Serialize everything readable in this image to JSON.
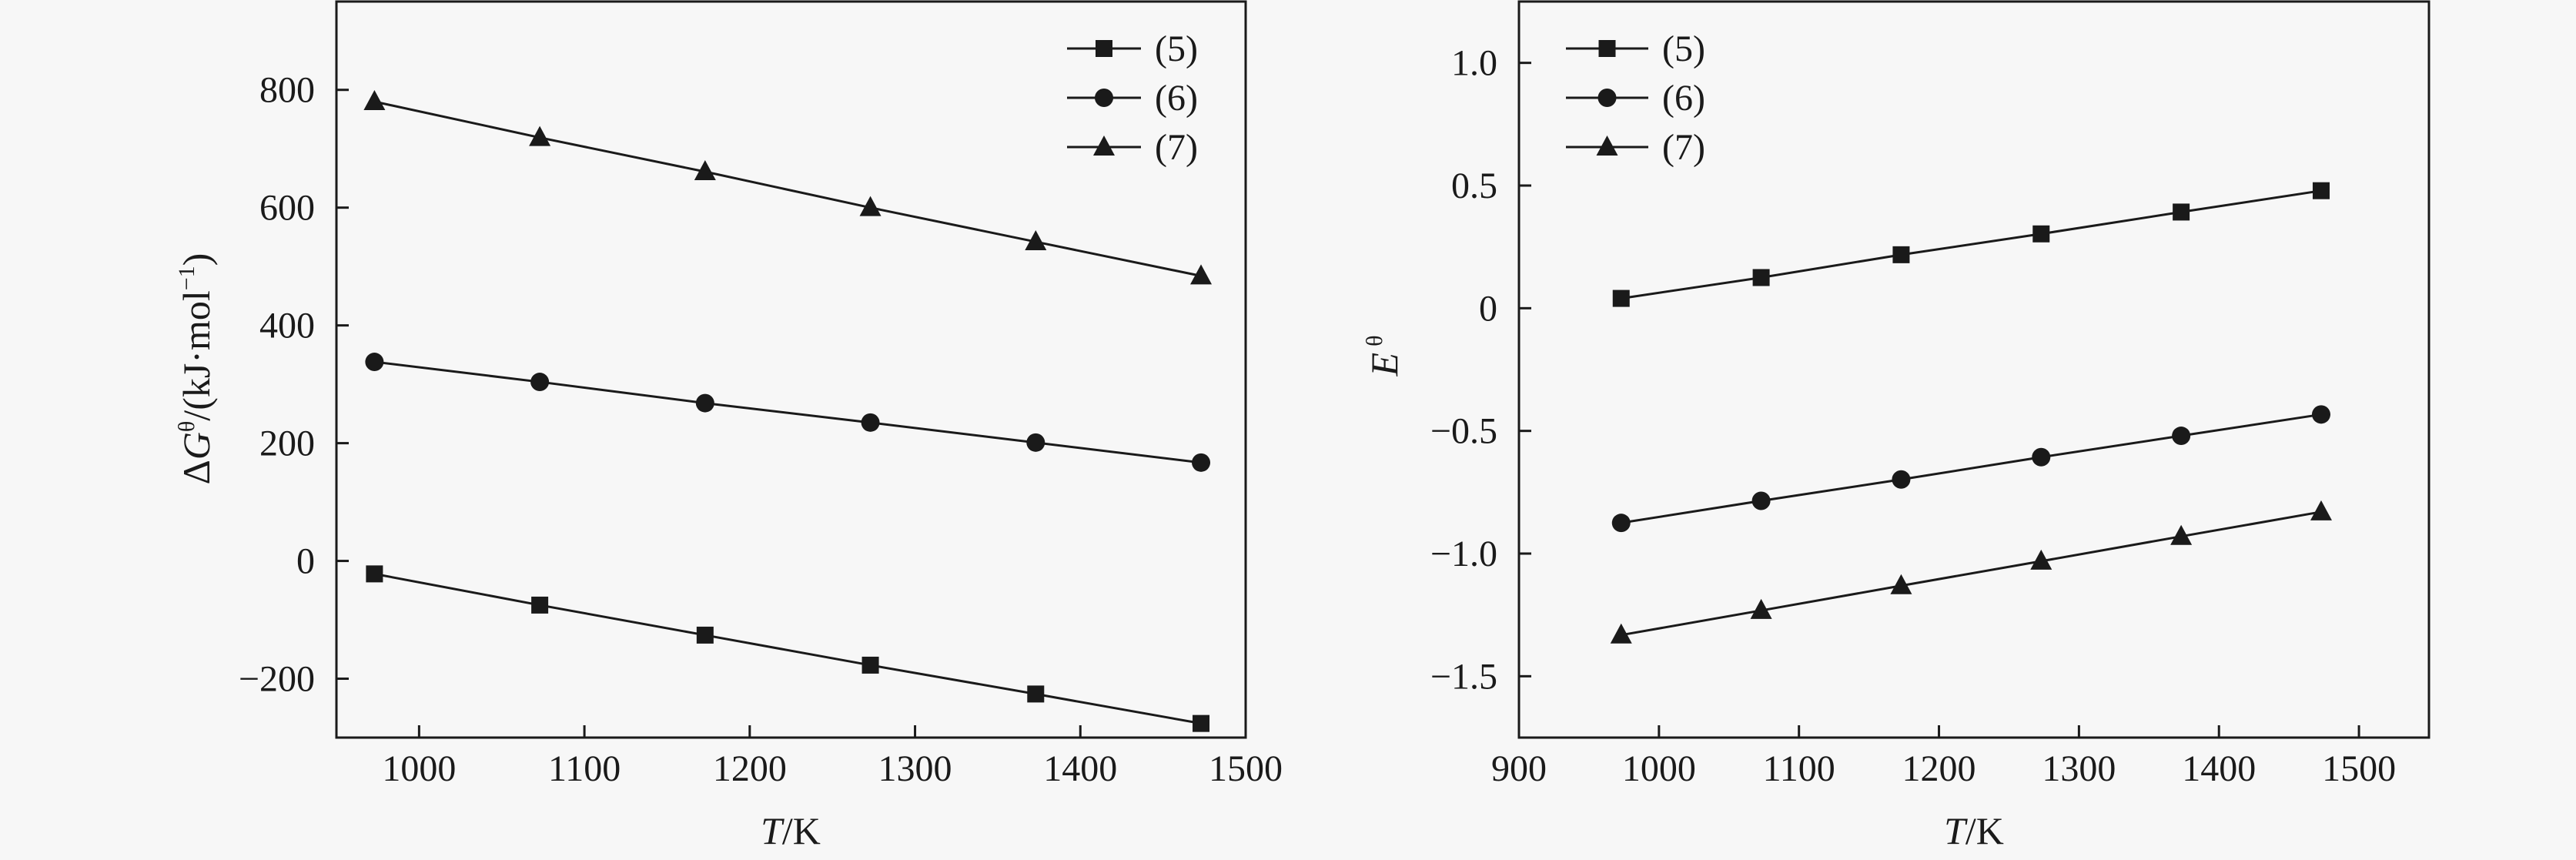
{
  "chart_data": [
    {
      "type": "line",
      "title": "",
      "xlabel": "T/K",
      "xlabel_italic": "T",
      "xlabel_unit": "/K",
      "ylabel": "ΔGθ/(kJ·mol−1)",
      "ylabel_parts": {
        "delta": "Δ",
        "var": "G",
        "sup": "θ",
        "unit": "/(kJ·mol",
        "unit_sup": "−1",
        "close": ")"
      },
      "xlim": [
        950,
        1500
      ],
      "ylim": [
        -300,
        950
      ],
      "xticks": [
        1000,
        1100,
        1200,
        1300,
        1400,
        1500
      ],
      "xtick_labels": [
        "1000",
        "1100",
        "1200",
        "1300",
        "1400",
        "1500"
      ],
      "yticks": [
        -200,
        0,
        200,
        400,
        600,
        800
      ],
      "ytick_labels": [
        "−200",
        "0",
        "200",
        "400",
        "600",
        "800"
      ],
      "legend_position": "top-right",
      "x": [
        973,
        1073,
        1173,
        1273,
        1373,
        1473
      ],
      "series": [
        {
          "name": "(5)",
          "marker": "square",
          "values": [
            -22,
            -75,
            -126,
            -177,
            -226,
            -276
          ]
        },
        {
          "name": "(6)",
          "marker": "circle",
          "values": [
            338,
            304,
            268,
            235,
            201,
            167
          ]
        },
        {
          "name": "(7)",
          "marker": "triangle",
          "values": [
            780,
            719,
            661,
            600,
            542,
            484
          ]
        }
      ]
    },
    {
      "type": "line",
      "title": "",
      "xlabel": "T/K",
      "xlabel_italic": "T",
      "xlabel_unit": "/K",
      "ylabel": "Eθ",
      "ylabel_parts": {
        "var": "E",
        "sup": "θ"
      },
      "xlim": [
        900,
        1550
      ],
      "ylim": [
        -1.75,
        1.25
      ],
      "xticks": [
        900,
        1000,
        1100,
        1200,
        1300,
        1400,
        1500
      ],
      "xtick_labels": [
        "900",
        "1000",
        "1100",
        "1200",
        "1300",
        "1400",
        "1500"
      ],
      "yticks": [
        -1.5,
        -1.0,
        -0.5,
        0,
        0.5,
        1.0
      ],
      "ytick_labels": [
        "−1.5",
        "−1.0",
        "−0.5",
        "0",
        "0.5",
        "1.0"
      ],
      "legend_position": "top-left",
      "x": [
        973,
        1073,
        1173,
        1273,
        1373,
        1473
      ],
      "series": [
        {
          "name": "(5)",
          "marker": "square",
          "values": [
            0.04,
            0.125,
            0.218,
            0.303,
            0.392,
            0.479
          ]
        },
        {
          "name": "(6)",
          "marker": "circle",
          "values": [
            -0.875,
            -0.785,
            -0.698,
            -0.607,
            -0.52,
            -0.433
          ]
        },
        {
          "name": "(7)",
          "marker": "triangle",
          "values": [
            -1.332,
            -1.232,
            -1.131,
            -1.031,
            -0.93,
            -0.83
          ]
        }
      ]
    }
  ],
  "colors": {
    "ink": "#1a1a1a",
    "background": "#f7f7f7"
  }
}
